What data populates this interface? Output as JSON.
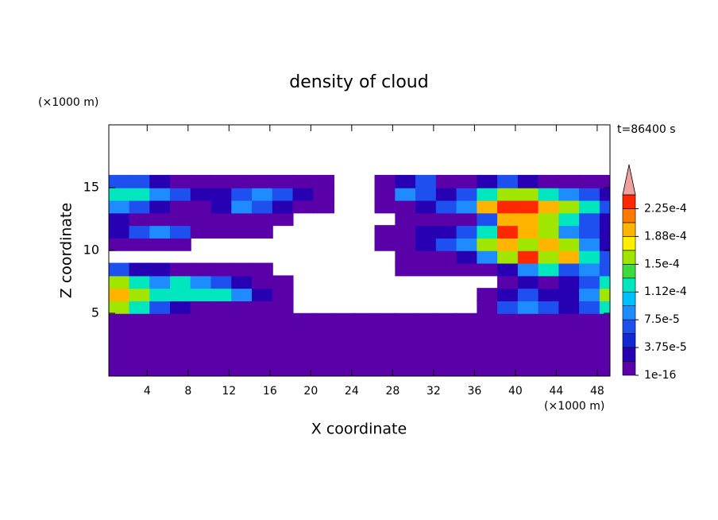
{
  "chart_data": {
    "type": "contour",
    "title": "density of cloud",
    "xlabel": "X coordinate",
    "ylabel": "Z coordinate",
    "x_unit": "(×1000 m)",
    "y_unit": "(×1000 m)",
    "annotation": "t=86400 s",
    "xlim": [
      0.25,
      49.25
    ],
    "ylim": [
      0,
      20
    ],
    "xticks": [
      4,
      8,
      12,
      16,
      20,
      24,
      28,
      32,
      36,
      40,
      44,
      48
    ],
    "yticks": [
      5,
      10,
      15
    ],
    "x": [
      1.25,
      3.25,
      5.25,
      7.25,
      9.25,
      11.25,
      13.25,
      15.25,
      17.25,
      19.25,
      21.25,
      23.25,
      25.25,
      27.25,
      29.25,
      31.25,
      33.25,
      35.25,
      37.25,
      39.25,
      41.25,
      43.25,
      45.25,
      47.25,
      49.25
    ],
    "y": [
      0.5,
      1.5,
      2.5,
      3.5,
      4.5,
      5.5,
      6.5,
      7.5,
      8.5,
      9.5,
      10.5,
      11.5,
      12.5,
      13.5,
      14.5,
      15.5
    ],
    "z": [
      [
        5e-06,
        5e-06,
        5e-06,
        5e-06,
        5e-06,
        5e-06,
        5e-06,
        5e-06,
        5e-06,
        5e-06,
        5e-06,
        5e-06,
        5e-06,
        5e-06,
        5e-06,
        5e-06,
        5e-06,
        5e-06,
        5e-06,
        5e-06,
        5e-06,
        5e-06,
        5e-06,
        5e-06,
        5e-06
      ],
      [
        5e-06,
        5e-06,
        5e-06,
        5e-06,
        5e-06,
        5e-06,
        5e-06,
        5e-06,
        5e-06,
        5e-06,
        5e-06,
        5e-06,
        5e-06,
        5e-06,
        5e-06,
        5e-06,
        5e-06,
        5e-06,
        5e-06,
        5e-06,
        5e-06,
        5e-06,
        5e-06,
        5e-06,
        5e-06
      ],
      [
        5e-06,
        5e-06,
        5e-06,
        5e-06,
        5e-06,
        5e-06,
        5e-06,
        5e-06,
        5e-06,
        5e-06,
        5e-06,
        5e-06,
        5e-06,
        5e-06,
        5e-06,
        5e-06,
        5e-06,
        5e-06,
        5e-06,
        5e-06,
        5e-06,
        5e-06,
        5e-06,
        5e-06,
        5e-06
      ],
      [
        5e-06,
        5e-06,
        5e-06,
        5e-06,
        5e-06,
        5e-06,
        5e-06,
        5e-06,
        5e-06,
        5e-06,
        5e-06,
        5e-06,
        5e-06,
        5e-06,
        5e-06,
        5e-06,
        5e-06,
        5e-06,
        5e-06,
        5e-06,
        5e-06,
        5e-06,
        5e-06,
        5e-06,
        5e-06
      ],
      [
        5e-06,
        5e-06,
        5e-06,
        5e-06,
        5e-06,
        5e-06,
        5e-06,
        5e-06,
        5e-06,
        5e-06,
        5e-06,
        5e-06,
        5e-06,
        5e-06,
        5e-06,
        5e-06,
        5e-06,
        5e-06,
        5e-06,
        5e-06,
        5e-06,
        5e-06,
        5e-06,
        5e-06,
        5e-06
      ],
      [
        0.00016,
        0.00012,
        6e-05,
        3e-05,
        5e-06,
        5e-06,
        5e-06,
        5e-06,
        5e-06,
        null,
        null,
        null,
        null,
        null,
        null,
        null,
        null,
        null,
        5e-06,
        6e-05,
        9e-05,
        6e-05,
        3e-05,
        6e-05,
        0.00012
      ],
      [
        0.0002,
        0.00016,
        0.00012,
        0.00012,
        0.00012,
        0.00012,
        9e-05,
        3e-05,
        5e-06,
        null,
        null,
        null,
        null,
        null,
        null,
        null,
        null,
        null,
        5e-06,
        3e-05,
        6e-05,
        3e-05,
        3e-05,
        9e-05,
        0.00016
      ],
      [
        0.00016,
        0.00012,
        9e-05,
        0.00012,
        9e-05,
        6e-05,
        3e-05,
        5e-06,
        5e-06,
        null,
        null,
        null,
        null,
        null,
        null,
        null,
        null,
        null,
        null,
        5e-06,
        3e-05,
        5e-06,
        3e-05,
        6e-05,
        0.00012
      ],
      [
        6e-05,
        3e-05,
        3e-05,
        5e-06,
        5e-06,
        5e-06,
        5e-06,
        5e-06,
        null,
        null,
        null,
        null,
        null,
        null,
        5e-06,
        5e-06,
        5e-06,
        5e-06,
        5e-06,
        3e-05,
        9e-05,
        0.00012,
        6e-05,
        9e-05,
        6e-05
      ],
      [
        null,
        null,
        null,
        null,
        null,
        null,
        null,
        null,
        null,
        null,
        null,
        null,
        null,
        null,
        5e-06,
        5e-06,
        5e-06,
        3e-05,
        9e-05,
        0.00016,
        0.00023,
        0.00016,
        0.0002,
        0.00012,
        6e-05
      ],
      [
        5e-06,
        5e-06,
        5e-06,
        5e-06,
        null,
        null,
        null,
        null,
        null,
        null,
        null,
        null,
        null,
        5e-06,
        5e-06,
        3e-05,
        6e-05,
        9e-05,
        0.00016,
        0.0002,
        0.00016,
        0.0002,
        0.00016,
        9e-05,
        3e-05
      ],
      [
        3e-05,
        6e-05,
        9e-05,
        6e-05,
        5e-06,
        5e-06,
        5e-06,
        5e-06,
        null,
        null,
        null,
        null,
        null,
        5e-06,
        5e-06,
        3e-05,
        3e-05,
        6e-05,
        0.00012,
        0.00023,
        0.0002,
        0.00016,
        9e-05,
        6e-05,
        3e-05
      ],
      [
        3e-05,
        5e-06,
        5e-06,
        5e-06,
        5e-06,
        5e-06,
        5e-06,
        5e-06,
        5e-06,
        null,
        null,
        null,
        null,
        null,
        5e-06,
        5e-06,
        5e-06,
        5e-06,
        6e-05,
        0.0002,
        0.0002,
        0.00016,
        0.00012,
        6e-05,
        3e-05
      ],
      [
        9e-05,
        6e-05,
        3e-05,
        5e-06,
        5e-06,
        3e-05,
        9e-05,
        6e-05,
        3e-05,
        5e-06,
        5e-06,
        null,
        null,
        5e-06,
        5e-06,
        3e-05,
        6e-05,
        9e-05,
        0.0002,
        0.00023,
        0.00023,
        0.0002,
        0.00016,
        0.00012,
        6e-05
      ],
      [
        0.00012,
        0.00012,
        9e-05,
        6e-05,
        3e-05,
        3e-05,
        6e-05,
        9e-05,
        6e-05,
        3e-05,
        5e-06,
        null,
        null,
        5e-06,
        9e-05,
        6e-05,
        3e-05,
        6e-05,
        0.00012,
        0.00016,
        0.00016,
        0.00012,
        9e-05,
        6e-05,
        3e-05
      ],
      [
        6e-05,
        6e-05,
        3e-05,
        5e-06,
        5e-06,
        5e-06,
        5e-06,
        5e-06,
        5e-06,
        5e-06,
        5e-06,
        null,
        null,
        5e-06,
        3e-05,
        6e-05,
        5e-06,
        5e-06,
        3e-05,
        6e-05,
        3e-05,
        5e-06,
        5e-06,
        5e-06,
        5e-06
      ]
    ],
    "levels": [
      1e-16,
      1.875e-05,
      3.75e-05,
      5.625e-05,
      7.5e-05,
      9.375e-05,
      0.0001125,
      0.00013125,
      0.00015,
      0.00016875,
      0.0001875,
      0.00020625,
      0.000225,
      0.00024375
    ],
    "colors": [
      "#5a00a8",
      "#2800b4",
      "#1428d2",
      "#1e50f0",
      "#1e8cff",
      "#00c0ff",
      "#00e6be",
      "#3cdc3c",
      "#a0e600",
      "#fff000",
      "#ffb400",
      "#ff7800",
      "#ff2800"
    ],
    "extend_color": "#f0a0a0",
    "colorbar_ticks": [
      {
        "value": 1e-16,
        "label": "1e-16"
      },
      {
        "value": 3.75e-05,
        "label": "3.75e-5"
      },
      {
        "value": 7.5e-05,
        "label": "7.5e-5"
      },
      {
        "value": 0.0001125,
        "label": "1.12e-4"
      },
      {
        "value": 0.00015,
        "label": "1.5e-4"
      },
      {
        "value": 0.0001875,
        "label": "1.88e-4"
      },
      {
        "value": 0.000225,
        "label": "2.25e-4"
      }
    ]
  }
}
